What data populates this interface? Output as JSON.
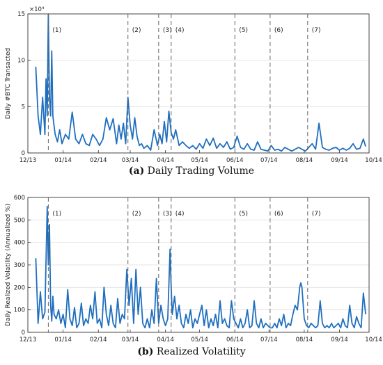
{
  "chart_data": [
    {
      "type": "line",
      "caption_letter": "(a)",
      "caption_text": "Daily Trading Volume",
      "ylabel": "Daily #BTC Transacted",
      "y_multiplier": "×10⁴",
      "ylim": [
        0,
        15
      ],
      "yticks": [
        "0",
        "5",
        "10",
        "15"
      ],
      "xlim": [
        0,
        300
      ],
      "xtick_labels": [
        "12/13",
        "01/14",
        "02/14",
        "03/14",
        "04/14",
        "05/14",
        "06/14",
        "07/14",
        "08/14",
        "09/14",
        "10/14"
      ],
      "xtick_positions": [
        0,
        31,
        62,
        90,
        121,
        151,
        182,
        212,
        243,
        274,
        304
      ],
      "grid": true,
      "events": [
        {
          "label": "(1)",
          "x": 18
        },
        {
          "label": "(2)",
          "x": 88
        },
        {
          "label": "(3)",
          "x": 115
        },
        {
          "label": "(4)",
          "x": 126
        },
        {
          "label": "(5)",
          "x": 182
        },
        {
          "label": "(6)",
          "x": 213
        },
        {
          "label": "(7)",
          "x": 246
        }
      ],
      "series": [
        {
          "color": "#1f6fbf",
          "x": [
            7,
            9,
            11,
            13,
            15,
            16,
            17,
            18,
            19,
            20,
            21,
            22,
            24,
            26,
            28,
            30,
            33,
            36,
            39,
            42,
            45,
            48,
            51,
            54,
            57,
            60,
            63,
            66,
            69,
            72,
            75,
            78,
            80,
            82,
            84,
            86,
            88,
            90,
            92,
            94,
            96,
            98,
            100,
            102,
            105,
            108,
            111,
            114,
            116,
            118,
            120,
            122,
            124,
            126,
            128,
            130,
            133,
            136,
            139,
            142,
            145,
            148,
            151,
            154,
            157,
            160,
            163,
            166,
            169,
            172,
            175,
            178,
            181,
            184,
            187,
            190,
            193,
            196,
            199,
            202,
            205,
            208,
            211,
            214,
            217,
            220,
            223,
            226,
            229,
            232,
            235,
            238,
            241,
            244,
            247,
            250,
            253,
            256,
            259,
            262,
            265,
            268,
            271,
            274,
            277,
            280,
            283,
            286,
            289,
            292,
            295,
            297
          ],
          "y": [
            9.3,
            4,
            2,
            6,
            2,
            8,
            4,
            15,
            6,
            4,
            11,
            4,
            2,
            1.2,
            2.5,
            1,
            2,
            1.5,
            4.4,
            1.5,
            1,
            2,
            1,
            0.8,
            2,
            1.5,
            0.8,
            1.5,
            3.8,
            2.5,
            3.7,
            1,
            3,
            1.5,
            3.2,
            1,
            6,
            3,
            1.5,
            3.8,
            1.8,
            0.8,
            1,
            0.5,
            0.8,
            0.3,
            2.5,
            0.8,
            2,
            1,
            3.4,
            1.2,
            4.5,
            2.2,
            1.5,
            2.5,
            0.8,
            1.2,
            0.8,
            0.5,
            0.8,
            0.4,
            1,
            0.5,
            1.5,
            0.8,
            1.6,
            0.5,
            1,
            0.6,
            1.2,
            0.4,
            0.6,
            1.8,
            0.6,
            0.4,
            1,
            0.4,
            0.3,
            1.2,
            0.4,
            0.3,
            0.2,
            0.8,
            0.3,
            0.4,
            0.2,
            0.6,
            0.4,
            0.2,
            0.4,
            0.6,
            0.4,
            0.2,
            0.6,
            1,
            0.4,
            3.2,
            0.6,
            0.4,
            0.3,
            0.5,
            0.6,
            0.3,
            0.5,
            0.3,
            0.5,
            1,
            0.4,
            0.5,
            1.5,
            0.7
          ]
        }
      ]
    },
    {
      "type": "line",
      "caption_letter": "(b)",
      "caption_text": "Realized Volatility",
      "ylabel": "Daily Realized Volatility (Annualized %)",
      "ylim": [
        0,
        600
      ],
      "yticks": [
        "0",
        "100",
        "200",
        "300",
        "400",
        "500",
        "600"
      ],
      "xlim": [
        0,
        300
      ],
      "xtick_labels": [
        "12/13",
        "01/14",
        "02/14",
        "03/14",
        "04/14",
        "05/14",
        "06/14",
        "07/14",
        "08/14",
        "09/14",
        "10/14"
      ],
      "xtick_positions": [
        0,
        31,
        62,
        90,
        121,
        151,
        182,
        212,
        243,
        274,
        304
      ],
      "grid": true,
      "events": [
        {
          "label": "(1)",
          "x": 18
        },
        {
          "label": "(2)",
          "x": 88
        },
        {
          "label": "(3)",
          "x": 115
        },
        {
          "label": "(4)",
          "x": 126
        },
        {
          "label": "(5)",
          "x": 182
        },
        {
          "label": "(6)",
          "x": 213
        },
        {
          "label": "(7)",
          "x": 246
        }
      ],
      "series": [
        {
          "color": "#1f6fbf",
          "x": [
            7,
            9,
            11,
            13,
            15,
            17,
            18,
            19,
            20,
            21,
            22,
            23,
            25,
            27,
            29,
            31,
            33,
            35,
            37,
            39,
            41,
            43,
            45,
            47,
            49,
            51,
            53,
            55,
            57,
            59,
            61,
            63,
            65,
            67,
            69,
            71,
            73,
            75,
            77,
            79,
            81,
            83,
            85,
            87,
            89,
            91,
            93,
            95,
            97,
            99,
            101,
            103,
            105,
            107,
            109,
            111,
            113,
            115,
            117,
            119,
            121,
            123,
            125,
            126,
            127,
            129,
            131,
            133,
            135,
            137,
            139,
            141,
            143,
            145,
            147,
            149,
            151,
            153,
            155,
            157,
            159,
            161,
            163,
            165,
            167,
            169,
            171,
            173,
            175,
            177,
            179,
            181,
            183,
            185,
            187,
            189,
            191,
            193,
            195,
            197,
            199,
            201,
            203,
            205,
            207,
            209,
            211,
            213,
            215,
            217,
            219,
            221,
            223,
            225,
            227,
            229,
            231,
            233,
            235,
            237,
            239,
            240,
            241,
            243,
            245,
            247,
            249,
            251,
            253,
            255,
            257,
            259,
            261,
            263,
            265,
            267,
            269,
            271,
            273,
            275,
            277,
            279,
            281,
            283,
            285,
            287,
            289,
            291,
            293,
            295,
            297
          ],
          "y": [
            330,
            40,
            180,
            60,
            90,
            560,
            300,
            480,
            120,
            50,
            160,
            80,
            60,
            100,
            40,
            80,
            20,
            190,
            60,
            30,
            110,
            20,
            40,
            130,
            30,
            60,
            40,
            120,
            60,
            180,
            40,
            60,
            20,
            200,
            80,
            30,
            120,
            40,
            20,
            150,
            40,
            80,
            60,
            280,
            120,
            240,
            40,
            280,
            80,
            200,
            40,
            20,
            60,
            20,
            100,
            40,
            240,
            40,
            120,
            60,
            30,
            60,
            370,
            200,
            80,
            160,
            60,
            120,
            40,
            20,
            80,
            40,
            100,
            20,
            60,
            40,
            80,
            120,
            30,
            100,
            20,
            60,
            30,
            80,
            20,
            140,
            40,
            60,
            30,
            20,
            140,
            60,
            40,
            20,
            60,
            20,
            40,
            100,
            20,
            30,
            140,
            40,
            20,
            60,
            20,
            40,
            30,
            20,
            20,
            40,
            20,
            60,
            30,
            80,
            20,
            40,
            30,
            80,
            120,
            100,
            200,
            220,
            200,
            60,
            30,
            20,
            40,
            30,
            20,
            30,
            140,
            40,
            20,
            30,
            20,
            40,
            20,
            30,
            40,
            20,
            60,
            30,
            20,
            120,
            40,
            20,
            70,
            40,
            20,
            175,
            80
          ]
        }
      ]
    }
  ]
}
